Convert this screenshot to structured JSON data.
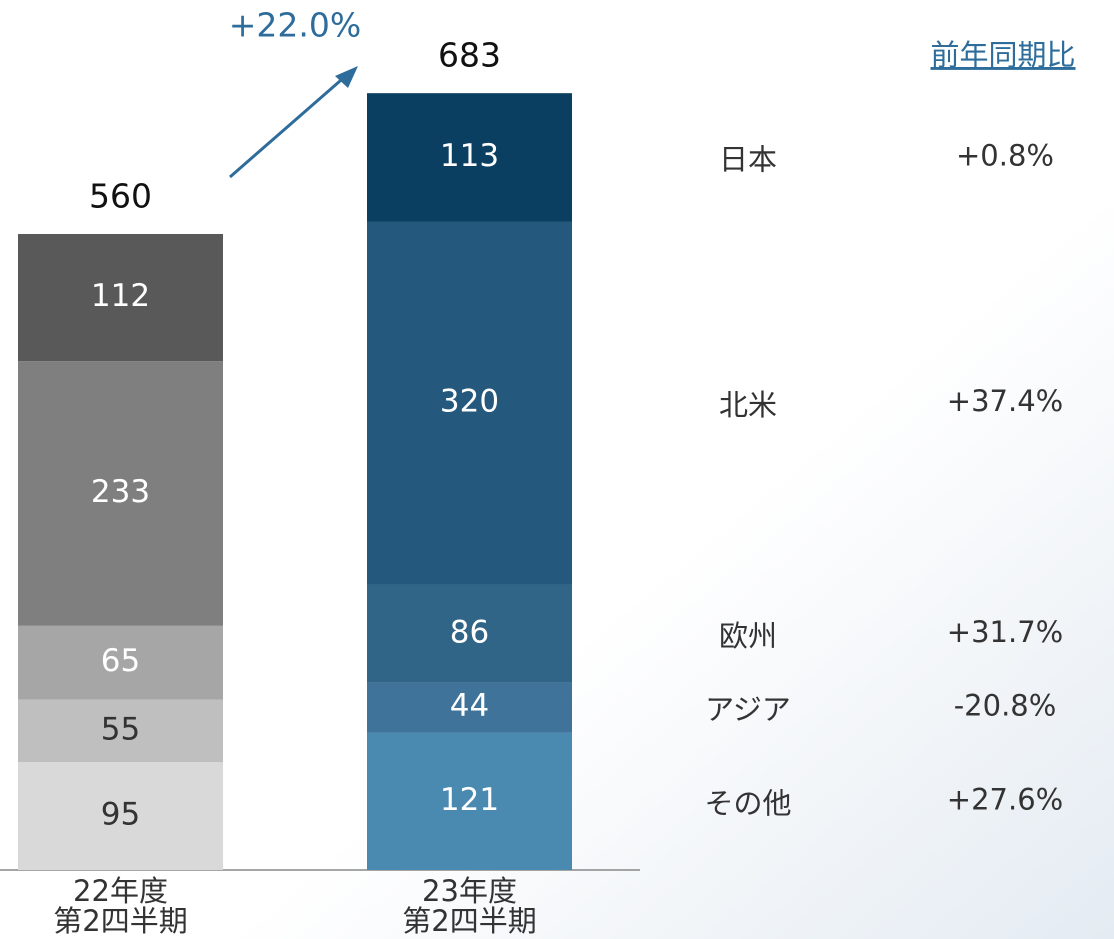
{
  "chart_data": {
    "type": "stacked_bar",
    "categories": [
      "22年度\n第2四半期",
      "23年度\n第2四半期"
    ],
    "series": [
      {
        "name": "その他",
        "colors": [
          "#d9d9d9",
          "#4a89b0"
        ],
        "values": [
          95,
          121
        ],
        "change": "+27.6%"
      },
      {
        "name": "アジア",
        "colors": [
          "#bfbfbf",
          "#3f7399"
        ],
        "values": [
          55,
          44
        ],
        "change": "-20.8%"
      },
      {
        "name": "欧州",
        "colors": [
          "#a6a6a6",
          "#316588"
        ],
        "values": [
          65,
          86
        ],
        "change": "+31.7%"
      },
      {
        "name": "北米",
        "colors": [
          "#7f7f7f",
          "#24587c"
        ],
        "values": [
          233,
          320
        ],
        "change": "+37.4%"
      },
      {
        "name": "日本",
        "colors": [
          "#595959",
          "#0b3f62"
        ],
        "values": [
          112,
          113
        ],
        "change": "+0.8%"
      }
    ],
    "totals": [
      560,
      683
    ],
    "growth_annotation": "+22.0%",
    "change_header": "前年同期比",
    "ylim": [
      0,
      700
    ]
  }
}
